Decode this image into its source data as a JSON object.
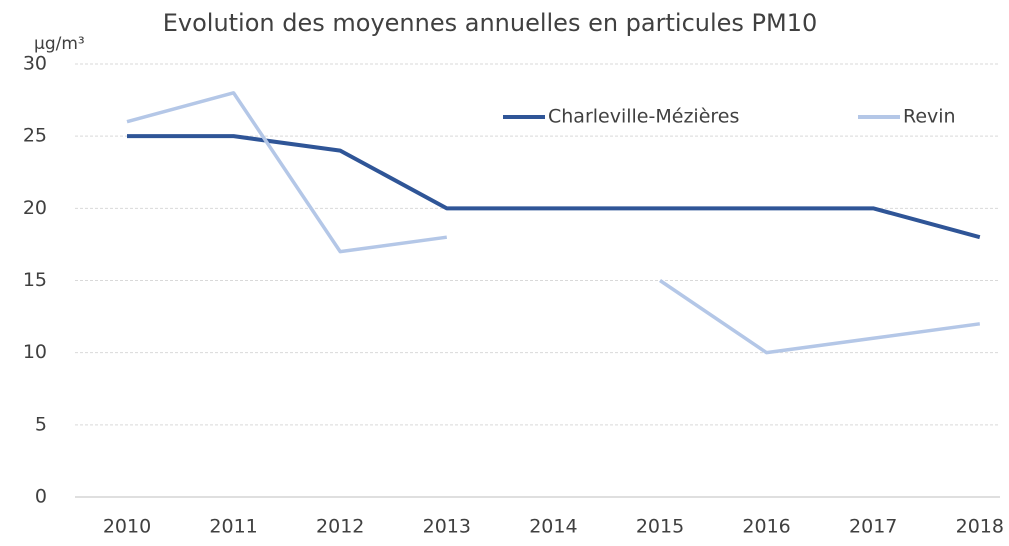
{
  "chart_data": {
    "type": "line",
    "title": "Evolution des moyennes annuelles en particules PM10",
    "y_label": "µg/m³",
    "categories": [
      "2010",
      "2011",
      "2012",
      "2013",
      "2014",
      "2015",
      "2016",
      "2017",
      "2018"
    ],
    "series": [
      {
        "name": "Charleville-Mézières",
        "color": "#2f5597",
        "values": [
          25,
          25,
          24,
          20,
          20,
          20,
          20,
          20,
          18
        ]
      },
      {
        "name": "Revin",
        "color": "#b4c7e7",
        "values": [
          26,
          28,
          17,
          18,
          null,
          15,
          10,
          11,
          12
        ]
      }
    ],
    "ylim": [
      0,
      30
    ],
    "yticks": [
      0,
      5,
      10,
      15,
      20,
      25,
      30
    ],
    "grid": true,
    "legend": "top-right"
  }
}
